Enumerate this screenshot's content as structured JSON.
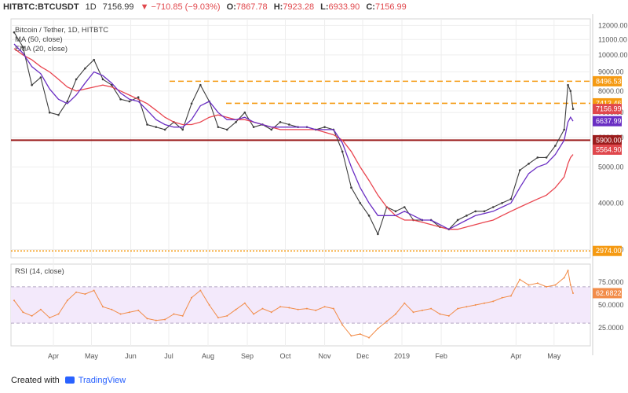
{
  "header": {
    "symbol": "HITBTC:BTCUSDT",
    "interval": "1D",
    "close": "7156.99",
    "change": "▼ −710.85 (−9.03%)",
    "o_label": "O:",
    "o": "7867.78",
    "h_label": "H:",
    "h": "7923.28",
    "l_label": "L:",
    "l": "6933.90",
    "c_label": "C:",
    "c": "7156.99"
  },
  "footer": {
    "created_with": "Created with",
    "brand": "TradingView"
  },
  "colors": {
    "price": "#3d3d3d",
    "sma": "#e9454f",
    "ema": "#6a2ec3",
    "rsi": "#f28d4a",
    "orange_levels": "#f59a12",
    "support_red": "#9b1c1c",
    "grid": "#eeeeee"
  },
  "chart_data": [
    {
      "type": "line",
      "title": "Bitcoin / Tether, 1D, HITBTC",
      "legend": [
        "Bitcoin / Tether, 1D, HITBTC",
        "MA (50, close)",
        "EMA (20, close)"
      ],
      "y_scale": "log",
      "ylim": [
        2850,
        12500
      ],
      "y_ticks": [
        12000,
        11000,
        10000,
        9000,
        8000,
        7000,
        6000,
        5000,
        4000,
        3000
      ],
      "y_tick_labels": [
        "12000.00",
        "11000.00",
        "10000.00",
        "9000.00",
        "8000.00",
        "7000.00",
        "6000.00",
        "5000.00",
        "4000.00",
        "3000.00"
      ],
      "x_ticks": [
        "Apr",
        "May",
        "Jun",
        "Jul",
        "Aug",
        "Sep",
        "Oct",
        "Nov",
        "Dec",
        "2019",
        "Feb",
        "Apr",
        "May"
      ],
      "dates": [
        "2018-03-01",
        "2018-03-08",
        "2018-03-15",
        "2018-03-22",
        "2018-03-29",
        "2018-04-05",
        "2018-04-12",
        "2018-04-19",
        "2018-04-26",
        "2018-05-03",
        "2018-05-10",
        "2018-05-17",
        "2018-05-24",
        "2018-05-31",
        "2018-06-07",
        "2018-06-14",
        "2018-06-21",
        "2018-06-28",
        "2018-07-05",
        "2018-07-12",
        "2018-07-19",
        "2018-07-26",
        "2018-08-02",
        "2018-08-09",
        "2018-08-16",
        "2018-08-23",
        "2018-08-30",
        "2018-09-06",
        "2018-09-13",
        "2018-09-20",
        "2018-09-27",
        "2018-10-04",
        "2018-10-11",
        "2018-10-18",
        "2018-10-25",
        "2018-11-01",
        "2018-11-08",
        "2018-11-15",
        "2018-11-22",
        "2018-11-29",
        "2018-12-06",
        "2018-12-13",
        "2018-12-20",
        "2018-12-27",
        "2019-01-03",
        "2019-01-10",
        "2019-01-17",
        "2019-01-24",
        "2019-01-31",
        "2019-02-07",
        "2019-02-14",
        "2019-02-21",
        "2019-02-28",
        "2019-03-07",
        "2019-03-14",
        "2019-03-21",
        "2019-03-28",
        "2019-04-04",
        "2019-04-11",
        "2019-04-18",
        "2019-04-25",
        "2019-05-02",
        "2019-05-09",
        "2019-05-12",
        "2019-05-14",
        "2019-05-16"
      ],
      "series": [
        {
          "name": "Bitcoin / Tether, 1D, HITBTC",
          "values": [
            11500,
            10500,
            8300,
            8700,
            7000,
            6900,
            7500,
            8600,
            9200,
            9700,
            8600,
            8300,
            7600,
            7500,
            7700,
            6500,
            6400,
            6300,
            6600,
            6300,
            7400,
            8300,
            7500,
            6400,
            6300,
            6600,
            7000,
            6400,
            6500,
            6300,
            6600,
            6500,
            6400,
            6400,
            6300,
            6400,
            6300,
            5500,
            4400,
            4000,
            3700,
            3300,
            3900,
            3800,
            3900,
            3600,
            3600,
            3600,
            3450,
            3400,
            3600,
            3700,
            3800,
            3800,
            3900,
            4000,
            4100,
            4900,
            5100,
            5300,
            5300,
            5700,
            6300,
            8300,
            8000,
            7157
          ]
        },
        {
          "name": "MA (50, close)",
          "values": [
            10400,
            10000,
            9700,
            9300,
            9000,
            8600,
            8200,
            8000,
            8100,
            8200,
            8300,
            8200,
            8000,
            7800,
            7600,
            7400,
            7100,
            6800,
            6600,
            6500,
            6500,
            6600,
            6800,
            6900,
            6800,
            6700,
            6700,
            6600,
            6500,
            6400,
            6300,
            6300,
            6300,
            6300,
            6300,
            6200,
            6100,
            5900,
            5500,
            5000,
            4600,
            4200,
            3900,
            3700,
            3600,
            3600,
            3550,
            3500,
            3450,
            3400,
            3400,
            3450,
            3500,
            3550,
            3600,
            3700,
            3800,
            3900,
            4000,
            4100,
            4200,
            4400,
            4700,
            5100,
            5300,
            5400
          ]
        },
        {
          "name": "EMA (20, close)",
          "values": [
            10700,
            10100,
            9300,
            8900,
            8100,
            7600,
            7400,
            7800,
            8400,
            9000,
            8800,
            8400,
            7900,
            7600,
            7500,
            7100,
            6700,
            6500,
            6400,
            6400,
            6700,
            7300,
            7500,
            7000,
            6700,
            6700,
            6800,
            6600,
            6500,
            6400,
            6400,
            6400,
            6400,
            6400,
            6300,
            6300,
            6300,
            5800,
            5000,
            4400,
            4000,
            3700,
            3700,
            3700,
            3800,
            3700,
            3600,
            3600,
            3500,
            3400,
            3500,
            3600,
            3700,
            3750,
            3800,
            3900,
            4000,
            4400,
            4800,
            5000,
            5100,
            5400,
            5900,
            6600,
            6800,
            6638
          ]
        }
      ],
      "horizontal_levels": [
        {
          "value": 8496.53,
          "label": "8496.53",
          "style": "dashed",
          "color": "#f59a12"
        },
        {
          "value": 7413.46,
          "label": "7413.46",
          "style": "dashed",
          "color": "#f59a12"
        },
        {
          "value": 5900.0,
          "label": "5900.00",
          "style": "solid",
          "color": "#9b1c1c"
        },
        {
          "value": 2974.0,
          "label": "2974.00",
          "style": "dotted",
          "color": "#f59a12"
        }
      ],
      "price_labels": [
        {
          "value": 7156.99,
          "label": "7156.99",
          "color": "#e0474c"
        },
        {
          "value": 6637.99,
          "label": "6637.99",
          "color": "#6a2ec3"
        },
        {
          "value": 5564.9,
          "label": "5564.90",
          "color": "#e0474c"
        }
      ]
    },
    {
      "type": "line",
      "title": "RSI (14, close)",
      "legend": [
        "RSI (14, close)"
      ],
      "ylim": [
        5,
        95
      ],
      "y_ticks": [
        75,
        50,
        25
      ],
      "y_tick_labels": [
        "75.0000",
        "50.0000",
        "25.0000"
      ],
      "band": [
        30,
        70
      ],
      "dates": [
        "2018-03-01",
        "2018-03-08",
        "2018-03-15",
        "2018-03-22",
        "2018-03-29",
        "2018-04-05",
        "2018-04-12",
        "2018-04-19",
        "2018-04-26",
        "2018-05-03",
        "2018-05-10",
        "2018-05-17",
        "2018-05-24",
        "2018-05-31",
        "2018-06-07",
        "2018-06-14",
        "2018-06-21",
        "2018-06-28",
        "2018-07-05",
        "2018-07-12",
        "2018-07-19",
        "2018-07-26",
        "2018-08-02",
        "2018-08-09",
        "2018-08-16",
        "2018-08-23",
        "2018-08-30",
        "2018-09-06",
        "2018-09-13",
        "2018-09-20",
        "2018-09-27",
        "2018-10-04",
        "2018-10-11",
        "2018-10-18",
        "2018-10-25",
        "2018-11-01",
        "2018-11-08",
        "2018-11-15",
        "2018-11-22",
        "2018-11-29",
        "2018-12-06",
        "2018-12-13",
        "2018-12-20",
        "2018-12-27",
        "2019-01-03",
        "2019-01-10",
        "2019-01-17",
        "2019-01-24",
        "2019-01-31",
        "2019-02-07",
        "2019-02-14",
        "2019-02-21",
        "2019-02-28",
        "2019-03-07",
        "2019-03-14",
        "2019-03-21",
        "2019-03-28",
        "2019-04-04",
        "2019-04-11",
        "2019-04-18",
        "2019-04-25",
        "2019-05-02",
        "2019-05-09",
        "2019-05-12",
        "2019-05-14",
        "2019-05-16"
      ],
      "series": [
        {
          "name": "RSI (14, close)",
          "values": [
            55,
            42,
            38,
            45,
            36,
            40,
            55,
            64,
            62,
            66,
            48,
            45,
            40,
            42,
            44,
            35,
            33,
            34,
            40,
            38,
            58,
            66,
            50,
            36,
            38,
            45,
            52,
            40,
            46,
            42,
            48,
            47,
            45,
            46,
            44,
            48,
            46,
            28,
            16,
            18,
            14,
            24,
            32,
            40,
            52,
            42,
            44,
            46,
            40,
            38,
            46,
            48,
            50,
            52,
            54,
            58,
            60,
            78,
            72,
            74,
            70,
            72,
            80,
            88,
            72,
            63
          ]
        }
      ],
      "value_label": "62.6822"
    }
  ]
}
